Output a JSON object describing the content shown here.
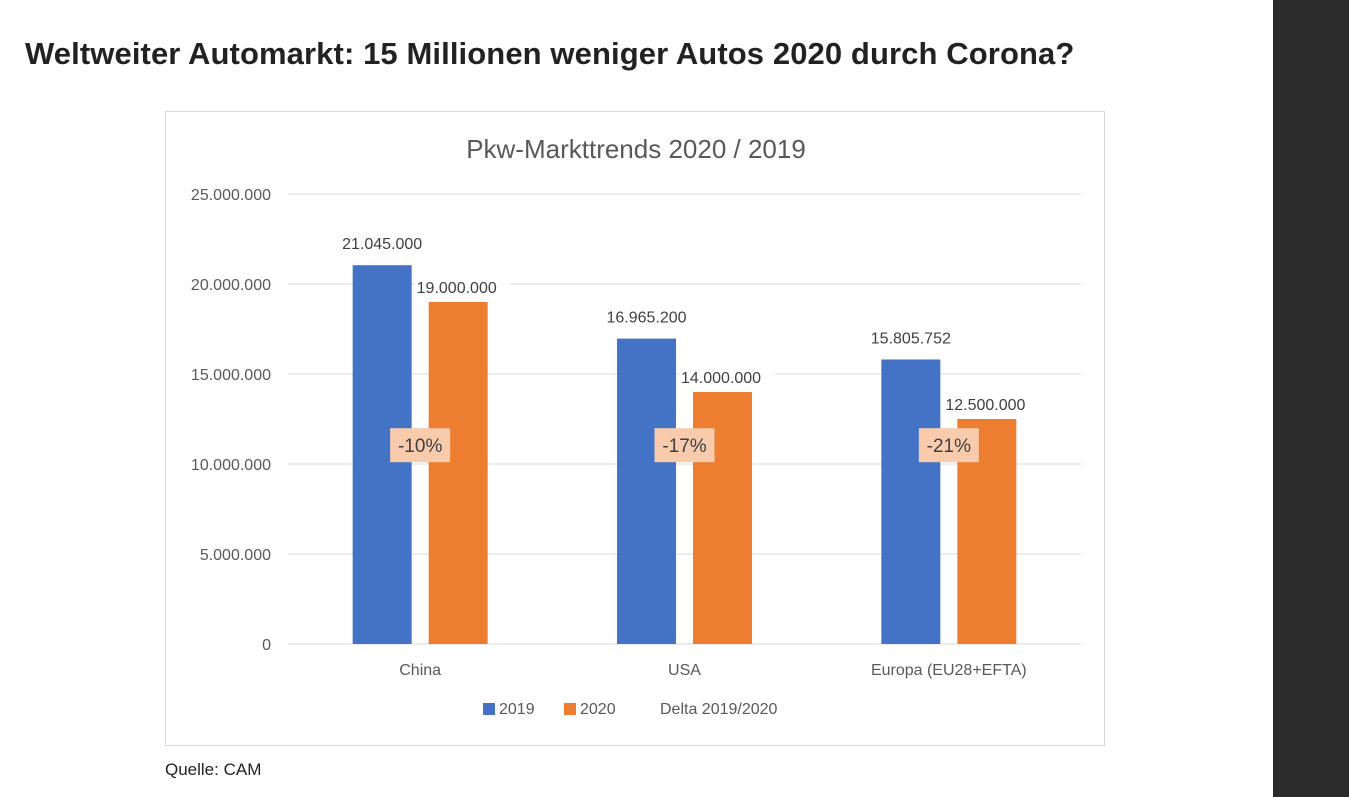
{
  "article": {
    "title": "Weltweiter Automarkt: 15 Millionen weniger Autos 2020 durch Corona?",
    "source": "Quelle: CAM"
  },
  "colors": {
    "series_2019": "#4472c4",
    "series_2020": "#ed7d31",
    "delta_box": "#f8cbad",
    "gridline": "#d9d9d9",
    "axis_text": "#595959",
    "sidebar": "#2b2b2b"
  },
  "chart_data": {
    "type": "bar",
    "title": "Pkw-Markttrends 2020 / 2019",
    "categories": [
      "China",
      "USA",
      "Europa (EU28+EFTA)"
    ],
    "series": [
      {
        "name": "2019",
        "values": [
          21045000,
          16965200,
          15805752
        ],
        "labels": [
          "21.045.000",
          "16.965.200",
          "15.805.752"
        ]
      },
      {
        "name": "2020",
        "values": [
          19000000,
          14000000,
          12500000
        ],
        "labels": [
          "19.000.000",
          "14.000.000",
          "12.500.000"
        ]
      }
    ],
    "deltas": [
      "-10%",
      "-17%",
      "-21%"
    ],
    "delta_legend": "Delta 2019/2020",
    "ylim": [
      0,
      25000000
    ],
    "yticks": [
      0,
      5000000,
      10000000,
      15000000,
      20000000,
      25000000
    ],
    "ytick_labels": [
      "0",
      "5.000.000",
      "10.000.000",
      "15.000.000",
      "20.000.000",
      "25.000.000"
    ],
    "xlabel": "",
    "ylabel": "",
    "grid": true,
    "legend_position": "bottom"
  }
}
